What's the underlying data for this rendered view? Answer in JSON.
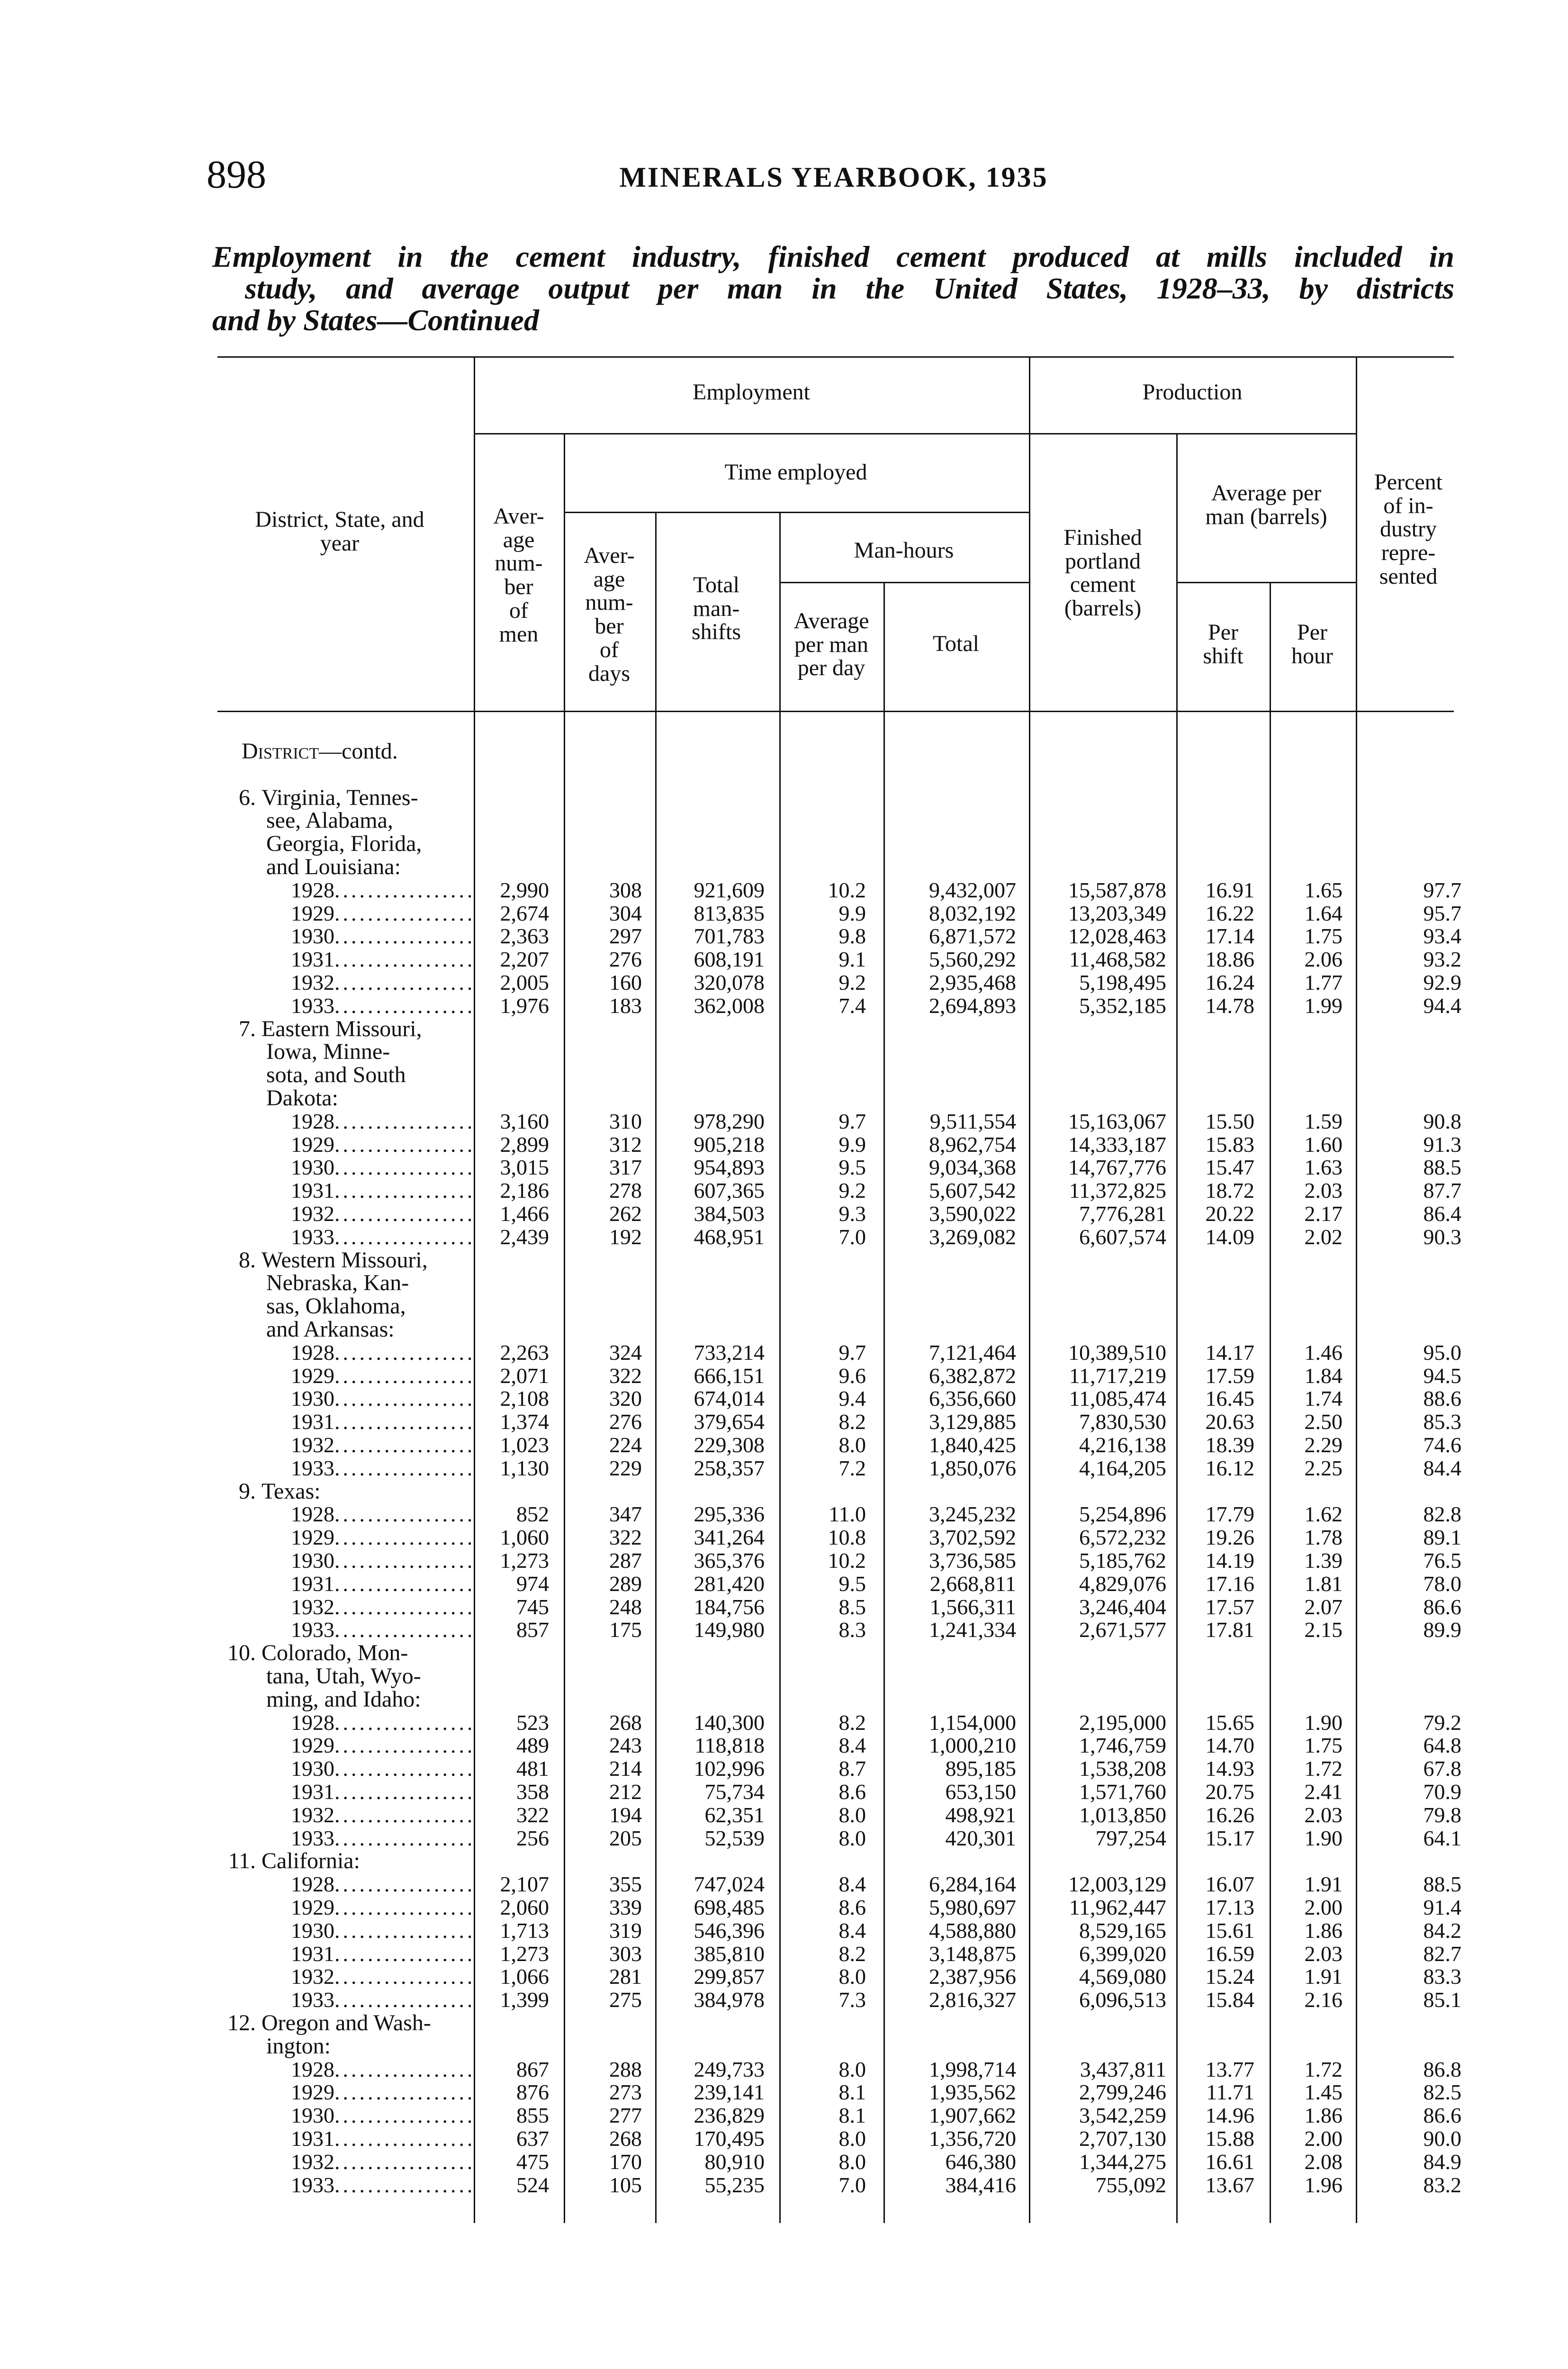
{
  "header": {
    "page_number": "898",
    "running_title": "MINERALS YEARBOOK, 1935"
  },
  "caption": {
    "lines": [
      "Employment in the cement industry, finished cement produced at mills included in",
      "study, and average output per man in the United States, 1928–33, by districts",
      "and by States—Continued"
    ]
  },
  "table": {
    "col_headers": {
      "stub": [
        "District, State, and",
        "year"
      ],
      "employment": "Employment",
      "production": "Production",
      "time_employed": "Time employed",
      "man_hours": "Man-hours",
      "avg_men": [
        "Aver-",
        "age",
        "num-",
        "ber",
        "of",
        "men"
      ],
      "avg_days": [
        "Aver-",
        "age",
        "num-",
        "ber",
        "of",
        "days"
      ],
      "total_man_shifts": [
        "Total",
        "man-",
        "shifts"
      ],
      "avg_per_man_per_day": [
        "Average",
        "per man",
        "per day"
      ],
      "total_man_hours": "Total",
      "finished_cement": [
        "Finished",
        "portland",
        "cement",
        "(barrels)"
      ],
      "avg_per_man": [
        "Average per",
        "man (barrels)"
      ],
      "per_shift": [
        "Per",
        "shift"
      ],
      "per_hour": [
        "Per",
        "hour"
      ],
      "percent": [
        "Percent",
        "of in-",
        "dustry",
        "repre-",
        "sented"
      ]
    },
    "section_label": {
      "smallcaps": "District",
      "rest": "—contd."
    },
    "districts": [
      {
        "number": "6.",
        "name_lines": [
          "Virginia, Tennes-",
          "see, Alabama,",
          "Georgia, Florida,",
          "and Louisiana:"
        ],
        "rows": [
          {
            "year": "1928",
            "values": [
              "2,990",
              "308",
              "921,609",
              "10.2",
              "9,432,007",
              "15,587,878",
              "16.91",
              "1.65",
              "97.7"
            ]
          },
          {
            "year": "1929",
            "values": [
              "2,674",
              "304",
              "813,835",
              "9.9",
              "8,032,192",
              "13,203,349",
              "16.22",
              "1.64",
              "95.7"
            ]
          },
          {
            "year": "1930",
            "values": [
              "2,363",
              "297",
              "701,783",
              "9.8",
              "6,871,572",
              "12,028,463",
              "17.14",
              "1.75",
              "93.4"
            ]
          },
          {
            "year": "1931",
            "values": [
              "2,207",
              "276",
              "608,191",
              "9.1",
              "5,560,292",
              "11,468,582",
              "18.86",
              "2.06",
              "93.2"
            ]
          },
          {
            "year": "1932",
            "values": [
              "2,005",
              "160",
              "320,078",
              "9.2",
              "2,935,468",
              "5,198,495",
              "16.24",
              "1.77",
              "92.9"
            ]
          },
          {
            "year": "1933",
            "values": [
              "1,976",
              "183",
              "362,008",
              "7.4",
              "2,694,893",
              "5,352,185",
              "14.78",
              "1.99",
              "94.4"
            ]
          }
        ]
      },
      {
        "number": "7.",
        "name_lines": [
          "Eastern Missouri,",
          "Iowa, Minne-",
          "sota, and South",
          "Dakota:"
        ],
        "rows": [
          {
            "year": "1928",
            "values": [
              "3,160",
              "310",
              "978,290",
              "9.7",
              "9,511,554",
              "15,163,067",
              "15.50",
              "1.59",
              "90.8"
            ]
          },
          {
            "year": "1929",
            "values": [
              "2,899",
              "312",
              "905,218",
              "9.9",
              "8,962,754",
              "14,333,187",
              "15.83",
              "1.60",
              "91.3"
            ]
          },
          {
            "year": "1930",
            "values": [
              "3,015",
              "317",
              "954,893",
              "9.5",
              "9,034,368",
              "14,767,776",
              "15.47",
              "1.63",
              "88.5"
            ]
          },
          {
            "year": "1931",
            "values": [
              "2,186",
              "278",
              "607,365",
              "9.2",
              "5,607,542",
              "11,372,825",
              "18.72",
              "2.03",
              "87.7"
            ]
          },
          {
            "year": "1932",
            "values": [
              "1,466",
              "262",
              "384,503",
              "9.3",
              "3,590,022",
              "7,776,281",
              "20.22",
              "2.17",
              "86.4"
            ]
          },
          {
            "year": "1933",
            "values": [
              "2,439",
              "192",
              "468,951",
              "7.0",
              "3,269,082",
              "6,607,574",
              "14.09",
              "2.02",
              "90.3"
            ]
          }
        ]
      },
      {
        "number": "8.",
        "name_lines": [
          "Western Missouri,",
          "Nebraska, Kan-",
          "sas, Oklahoma,",
          "and Arkansas:"
        ],
        "rows": [
          {
            "year": "1928",
            "values": [
              "2,263",
              "324",
              "733,214",
              "9.7",
              "7,121,464",
              "10,389,510",
              "14.17",
              "1.46",
              "95.0"
            ]
          },
          {
            "year": "1929",
            "values": [
              "2,071",
              "322",
              "666,151",
              "9.6",
              "6,382,872",
              "11,717,219",
              "17.59",
              "1.84",
              "94.5"
            ]
          },
          {
            "year": "1930",
            "values": [
              "2,108",
              "320",
              "674,014",
              "9.4",
              "6,356,660",
              "11,085,474",
              "16.45",
              "1.74",
              "88.6"
            ]
          },
          {
            "year": "1931",
            "values": [
              "1,374",
              "276",
              "379,654",
              "8.2",
              "3,129,885",
              "7,830,530",
              "20.63",
              "2.50",
              "85.3"
            ]
          },
          {
            "year": "1932",
            "values": [
              "1,023",
              "224",
              "229,308",
              "8.0",
              "1,840,425",
              "4,216,138",
              "18.39",
              "2.29",
              "74.6"
            ]
          },
          {
            "year": "1933",
            "values": [
              "1,130",
              "229",
              "258,357",
              "7.2",
              "1,850,076",
              "4,164,205",
              "16.12",
              "2.25",
              "84.4"
            ]
          }
        ]
      },
      {
        "number": "9.",
        "name_lines": [
          "Texas:"
        ],
        "rows": [
          {
            "year": "1928",
            "values": [
              "852",
              "347",
              "295,336",
              "11.0",
              "3,245,232",
              "5,254,896",
              "17.79",
              "1.62",
              "82.8"
            ]
          },
          {
            "year": "1929",
            "values": [
              "1,060",
              "322",
              "341,264",
              "10.8",
              "3,702,592",
              "6,572,232",
              "19.26",
              "1.78",
              "89.1"
            ]
          },
          {
            "year": "1930",
            "values": [
              "1,273",
              "287",
              "365,376",
              "10.2",
              "3,736,585",
              "5,185,762",
              "14.19",
              "1.39",
              "76.5"
            ]
          },
          {
            "year": "1931",
            "values": [
              "974",
              "289",
              "281,420",
              "9.5",
              "2,668,811",
              "4,829,076",
              "17.16",
              "1.81",
              "78.0"
            ]
          },
          {
            "year": "1932",
            "values": [
              "745",
              "248",
              "184,756",
              "8.5",
              "1,566,311",
              "3,246,404",
              "17.57",
              "2.07",
              "86.6"
            ]
          },
          {
            "year": "1933",
            "values": [
              "857",
              "175",
              "149,980",
              "8.3",
              "1,241,334",
              "2,671,577",
              "17.81",
              "2.15",
              "89.9"
            ]
          }
        ]
      },
      {
        "number": "10.",
        "name_lines": [
          "Colorado, Mon-",
          "tana, Utah, Wyo-",
          "ming, and Idaho:"
        ],
        "rows": [
          {
            "year": "1928",
            "values": [
              "523",
              "268",
              "140,300",
              "8.2",
              "1,154,000",
              "2,195,000",
              "15.65",
              "1.90",
              "79.2"
            ]
          },
          {
            "year": "1929",
            "values": [
              "489",
              "243",
              "118,818",
              "8.4",
              "1,000,210",
              "1,746,759",
              "14.70",
              "1.75",
              "64.8"
            ]
          },
          {
            "year": "1930",
            "values": [
              "481",
              "214",
              "102,996",
              "8.7",
              "895,185",
              "1,538,208",
              "14.93",
              "1.72",
              "67.8"
            ]
          },
          {
            "year": "1931",
            "values": [
              "358",
              "212",
              "75,734",
              "8.6",
              "653,150",
              "1,571,760",
              "20.75",
              "2.41",
              "70.9"
            ]
          },
          {
            "year": "1932",
            "values": [
              "322",
              "194",
              "62,351",
              "8.0",
              "498,921",
              "1,013,850",
              "16.26",
              "2.03",
              "79.8"
            ]
          },
          {
            "year": "1933",
            "values": [
              "256",
              "205",
              "52,539",
              "8.0",
              "420,301",
              "797,254",
              "15.17",
              "1.90",
              "64.1"
            ]
          }
        ]
      },
      {
        "number": "11.",
        "name_lines": [
          "California:"
        ],
        "rows": [
          {
            "year": "1928",
            "values": [
              "2,107",
              "355",
              "747,024",
              "8.4",
              "6,284,164",
              "12,003,129",
              "16.07",
              "1.91",
              "88.5"
            ]
          },
          {
            "year": "1929",
            "values": [
              "2,060",
              "339",
              "698,485",
              "8.6",
              "5,980,697",
              "11,962,447",
              "17.13",
              "2.00",
              "91.4"
            ]
          },
          {
            "year": "1930",
            "values": [
              "1,713",
              "319",
              "546,396",
              "8.4",
              "4,588,880",
              "8,529,165",
              "15.61",
              "1.86",
              "84.2"
            ]
          },
          {
            "year": "1931",
            "values": [
              "1,273",
              "303",
              "385,810",
              "8.2",
              "3,148,875",
              "6,399,020",
              "16.59",
              "2.03",
              "82.7"
            ]
          },
          {
            "year": "1932",
            "values": [
              "1,066",
              "281",
              "299,857",
              "8.0",
              "2,387,956",
              "4,569,080",
              "15.24",
              "1.91",
              "83.3"
            ]
          },
          {
            "year": "1933",
            "values": [
              "1,399",
              "275",
              "384,978",
              "7.3",
              "2,816,327",
              "6,096,513",
              "15.84",
              "2.16",
              "85.1"
            ]
          }
        ]
      },
      {
        "number": "12.",
        "name_lines": [
          "Oregon and Wash-",
          "ington:"
        ],
        "rows": [
          {
            "year": "1928",
            "values": [
              "867",
              "288",
              "249,733",
              "8.0",
              "1,998,714",
              "3,437,811",
              "13.77",
              "1.72",
              "86.8"
            ]
          },
          {
            "year": "1929",
            "values": [
              "876",
              "273",
              "239,141",
              "8.1",
              "1,935,562",
              "2,799,246",
              "11.71",
              "1.45",
              "82.5"
            ]
          },
          {
            "year": "1930",
            "values": [
              "855",
              "277",
              "236,829",
              "8.1",
              "1,907,662",
              "3,542,259",
              "14.96",
              "1.86",
              "86.6"
            ]
          },
          {
            "year": "1931",
            "values": [
              "637",
              "268",
              "170,495",
              "8.0",
              "1,356,720",
              "2,707,130",
              "15.88",
              "2.00",
              "90.0"
            ]
          },
          {
            "year": "1932",
            "values": [
              "475",
              "170",
              "80,910",
              "8.0",
              "646,380",
              "1,344,275",
              "16.61",
              "2.08",
              "84.9"
            ]
          },
          {
            "year": "1933",
            "values": [
              "524",
              "105",
              "55,235",
              "7.0",
              "384,416",
              "755,092",
              "13.67",
              "1.96",
              "83.2"
            ]
          }
        ]
      }
    ]
  }
}
